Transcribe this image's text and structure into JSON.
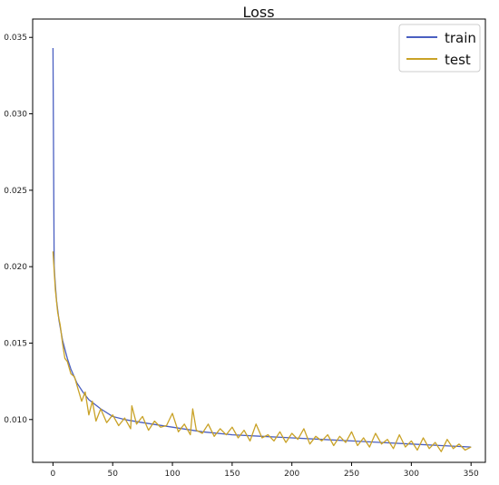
{
  "chart_data": {
    "type": "line",
    "title": "Loss",
    "xlabel": "",
    "ylabel": "",
    "xlim": [
      -17,
      362
    ],
    "ylim": [
      0.0072,
      0.0362
    ],
    "xticks": [
      0,
      50,
      100,
      150,
      200,
      250,
      300,
      350
    ],
    "xtick_labels": [
      "0",
      "50",
      "100",
      "150",
      "200",
      "250",
      "300",
      "350"
    ],
    "yticks": [
      0.01,
      0.015,
      0.02,
      0.025,
      0.03,
      0.035
    ],
    "ytick_labels": [
      "0.010",
      "0.015",
      "0.020",
      "0.025",
      "0.030",
      "0.035"
    ],
    "grid": false,
    "legend_position": "top-right",
    "series": [
      {
        "name": "train",
        "color": "#4a5fc1",
        "x": [
          0,
          1,
          2,
          3,
          5,
          8,
          10,
          12,
          15,
          20,
          25,
          30,
          40,
          50,
          60,
          75,
          100,
          125,
          150,
          175,
          200,
          225,
          250,
          275,
          300,
          325,
          350
        ],
        "y": [
          0.0343,
          0.02,
          0.0188,
          0.0178,
          0.0165,
          0.0152,
          0.0146,
          0.014,
          0.0133,
          0.0124,
          0.0118,
          0.0113,
          0.0107,
          0.0102,
          0.01,
          0.0098,
          0.0095,
          0.0092,
          0.009,
          0.0089,
          0.0088,
          0.0087,
          0.0086,
          0.0085,
          0.0084,
          0.0083,
          0.0082
        ]
      },
      {
        "name": "test",
        "color": "#c9a227",
        "x": [
          0,
          2,
          4,
          6,
          8,
          10,
          12,
          15,
          18,
          21,
          24,
          27,
          30,
          33,
          36,
          40,
          45,
          50,
          55,
          60,
          65,
          66,
          70,
          75,
          80,
          85,
          90,
          95,
          100,
          105,
          110,
          115,
          117,
          120,
          125,
          130,
          135,
          140,
          145,
          150,
          155,
          160,
          165,
          170,
          175,
          180,
          185,
          190,
          195,
          200,
          205,
          210,
          215,
          220,
          225,
          230,
          235,
          240,
          245,
          250,
          255,
          260,
          265,
          270,
          275,
          280,
          285,
          290,
          295,
          300,
          305,
          310,
          315,
          320,
          325,
          330,
          335,
          340,
          345,
          350
        ],
        "y": [
          0.021,
          0.0185,
          0.017,
          0.0162,
          0.015,
          0.014,
          0.0138,
          0.013,
          0.0128,
          0.012,
          0.0112,
          0.0118,
          0.0103,
          0.0112,
          0.0099,
          0.0107,
          0.0098,
          0.0103,
          0.0096,
          0.0101,
          0.0094,
          0.0109,
          0.0097,
          0.0102,
          0.0093,
          0.0099,
          0.0095,
          0.0096,
          0.0104,
          0.0092,
          0.0097,
          0.009,
          0.0107,
          0.0093,
          0.0091,
          0.0097,
          0.0089,
          0.0094,
          0.009,
          0.0095,
          0.0088,
          0.0093,
          0.0086,
          0.0097,
          0.0088,
          0.009,
          0.0086,
          0.0092,
          0.0085,
          0.0091,
          0.0087,
          0.0094,
          0.0084,
          0.0089,
          0.0086,
          0.009,
          0.0083,
          0.0089,
          0.0085,
          0.0092,
          0.0083,
          0.0088,
          0.0082,
          0.0091,
          0.0084,
          0.0087,
          0.0081,
          0.009,
          0.0082,
          0.0086,
          0.008,
          0.0088,
          0.0081,
          0.0085,
          0.0079,
          0.0087,
          0.0081,
          0.0084,
          0.008,
          0.0082
        ]
      }
    ]
  }
}
